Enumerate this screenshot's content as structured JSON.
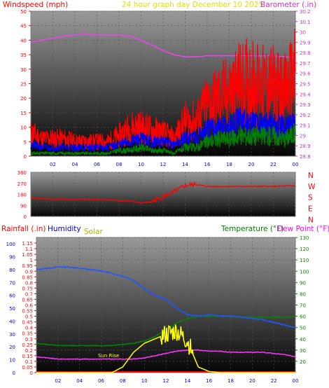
{
  "chart_data": [
    {
      "type": "line",
      "panel": "wind-barometer",
      "title": "24 hour graph day   December 10 2025",
      "left_label": "Windspeed (mph)",
      "right_label": "Barometer (.in)",
      "colors": {
        "title": "#e0e000",
        "left": "#ff0000",
        "right": "#cc33cc",
        "wind_avg": "#0000ff",
        "wind_gust": "#ff0000",
        "wind_low": "#008000",
        "barometer": "#ee44ee"
      },
      "x_hours": [
        0,
        1,
        2,
        3,
        4,
        5,
        6,
        7,
        8,
        9,
        10,
        11,
        12,
        13,
        14,
        15,
        16,
        17,
        18,
        19,
        20,
        21,
        22,
        23,
        24
      ],
      "x_tick_labels": [
        "02",
        "04",
        "06",
        "08",
        "10",
        "12",
        "14",
        "16",
        "18",
        "20",
        "22",
        "00"
      ],
      "left_ylim": [
        0,
        50
      ],
      "left_ticks": [
        "0",
        "5",
        "10",
        "15",
        "20",
        "25",
        "30",
        "35",
        "40",
        "45",
        "50"
      ],
      "right_ylim": [
        28.8,
        30.2
      ],
      "right_ticks": [
        "28.8",
        "28.9",
        "29",
        "29.1",
        "29.2",
        "29.3",
        "29.4",
        "29.5",
        "29.6",
        "29.7",
        "29.8",
        "29.9",
        "30",
        "30.1",
        "30.2"
      ],
      "series": [
        {
          "key": "barometer",
          "axis": "right",
          "values": [
            29.9,
            29.92,
            29.94,
            29.96,
            29.97,
            29.98,
            29.97,
            29.97,
            29.97,
            29.96,
            29.92,
            29.87,
            29.82,
            29.78,
            29.76,
            29.76,
            29.77,
            29.77,
            29.77,
            29.77,
            29.77,
            29.77,
            29.77,
            29.76,
            29.76
          ]
        },
        {
          "key": "wind_gust",
          "axis": "left",
          "values": [
            8,
            6,
            6,
            6,
            5,
            5,
            5,
            5,
            7,
            10,
            10,
            9,
            8,
            6,
            12,
            12,
            18,
            20,
            22,
            25,
            26,
            24,
            24,
            22,
            28
          ]
        },
        {
          "key": "wind_avg",
          "axis": "left",
          "values": [
            4,
            3,
            3,
            3,
            3,
            3,
            3,
            3,
            4,
            5,
            6,
            5,
            5,
            4,
            6,
            7,
            9,
            10,
            10,
            12,
            12,
            11,
            11,
            10,
            12
          ]
        },
        {
          "key": "wind_low",
          "axis": "left",
          "values": [
            1,
            1,
            1,
            1,
            1,
            1,
            1,
            1,
            2,
            2,
            3,
            2,
            2,
            1,
            3,
            3,
            5,
            6,
            6,
            7,
            7,
            7,
            7,
            6,
            8
          ]
        }
      ]
    },
    {
      "type": "line",
      "panel": "wind-direction",
      "y_ticks": [
        "0",
        "90",
        "180",
        "270",
        "360"
      ],
      "ylim": [
        0,
        360
      ],
      "compass_labels": [
        "N",
        "W",
        "S",
        "E",
        "N"
      ],
      "colors": {
        "compass": "#ff0000",
        "direction": "#ff0000"
      },
      "series": [
        {
          "key": "direction",
          "values": [
            150,
            145,
            140,
            140,
            140,
            138,
            138,
            135,
            130,
            125,
            110,
            120,
            160,
            200,
            250,
            260,
            245,
            245,
            245,
            245,
            245,
            245,
            245,
            248,
            250
          ]
        }
      ]
    },
    {
      "type": "line",
      "panel": "rain-humidity-solar-temperature",
      "labels": {
        "rainfall": "Rainfall (.in)",
        "humidity": "Humidity",
        "solar": "Solar",
        "temperature": "Temperature (°F)",
        "dew_point": "Dew Point (°F)",
        "annotation": "Sun Rise"
      },
      "colors": {
        "rainfall": "#ff0000",
        "humidity": "#0000cc",
        "solar": "#b0b000",
        "temperature": "#008000",
        "dew_point": "#ff00ff",
        "humidity_line": "#2255ff",
        "solar_line": "#ffff00",
        "temperature_line": "#008800",
        "dew_point_line": "#ff33ff"
      },
      "hum_ticks": [
        "0",
        "10",
        "20",
        "30",
        "40",
        "50",
        "60",
        "70",
        "80",
        "90",
        "100"
      ],
      "rain_ticks": [
        "0",
        "0.05",
        "0.1",
        "0.15",
        "0.2",
        "0.25",
        "0.3",
        "0.35",
        "0.4",
        "0.45",
        "0.5",
        "0.55",
        "0.6",
        "0.65",
        "0.7",
        "0.75",
        "0.8",
        "0.85",
        "0.9",
        "0.95",
        "1",
        "1.05",
        "1.1",
        "1.15"
      ],
      "rain_ylim": [
        0,
        1.2
      ],
      "temp_ticks": [
        "20",
        "30",
        "40",
        "50",
        "60",
        "70",
        "80",
        "90",
        "100",
        "110",
        "120",
        "130"
      ],
      "temp_ylim": [
        10,
        130
      ],
      "hum_ylim": [
        0,
        105
      ],
      "series": [
        {
          "key": "humidity",
          "axis": "hum",
          "values": [
            80,
            81,
            82,
            82,
            81,
            80,
            79,
            77,
            75,
            72,
            65,
            60,
            57,
            50,
            45,
            44,
            45,
            44,
            44,
            43,
            42,
            41,
            39,
            37,
            35
          ]
        },
        {
          "key": "temperature",
          "axis": "temp",
          "values": [
            36,
            35,
            34,
            34,
            34,
            34,
            34,
            34,
            35,
            36,
            38,
            42,
            48,
            54,
            58,
            60,
            60,
            60,
            60,
            59,
            59,
            59,
            59,
            59,
            60
          ]
        },
        {
          "key": "dew_point",
          "axis": "temp",
          "values": [
            24,
            23,
            22,
            22,
            22,
            22,
            22,
            22,
            22,
            22,
            23,
            25,
            27,
            29,
            30,
            30,
            29,
            29,
            28,
            28,
            28,
            28,
            27,
            26,
            24
          ]
        },
        {
          "key": "solar",
          "axis": "temp",
          "values": [
            10,
            10,
            10,
            10,
            10,
            10,
            10,
            10,
            15,
            28,
            36,
            40,
            44,
            47,
            38,
            15,
            11,
            10,
            10,
            10,
            10,
            10,
            10,
            10,
            10
          ]
        }
      ]
    }
  ]
}
